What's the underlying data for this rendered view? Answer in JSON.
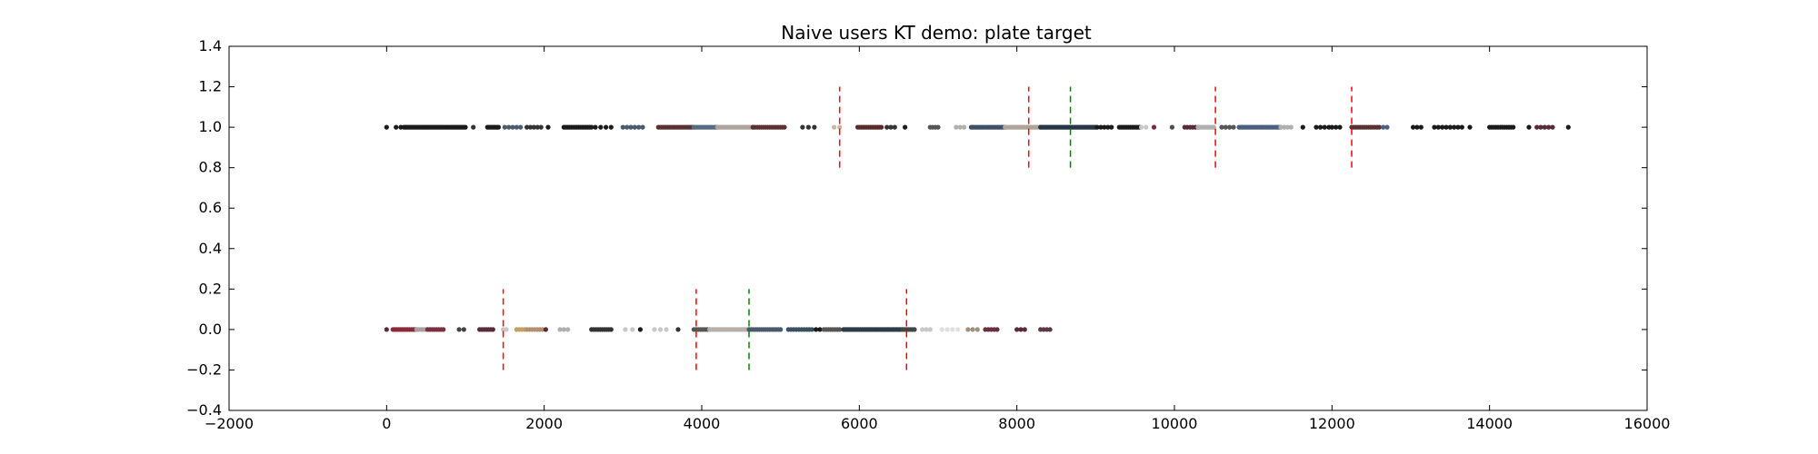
{
  "chart_data": {
    "type": "scatter",
    "title": "Naive users KT demo: plate target",
    "xlabel": "",
    "ylabel": "",
    "xlim": [
      -2000,
      16000
    ],
    "ylim": [
      -0.4,
      1.4
    ],
    "xticks": [
      -2000,
      0,
      2000,
      4000,
      6000,
      8000,
      10000,
      12000,
      14000,
      16000
    ],
    "yticks": [
      -0.4,
      -0.2,
      0.0,
      0.2,
      0.4,
      0.6,
      0.8,
      1.0,
      1.2,
      1.4
    ],
    "xtick_labels": [
      "−2000",
      "0",
      "2000",
      "4000",
      "6000",
      "8000",
      "10000",
      "12000",
      "14000",
      "16000"
    ],
    "ytick_labels": [
      "−0.4",
      "−0.2",
      "0.0",
      "0.2",
      "0.4",
      "0.6",
      "0.8",
      "1.0",
      "1.2",
      "1.4"
    ],
    "grid": false,
    "series": [
      {
        "y": 1.0,
        "clusters": [
          {
            "from": 0,
            "to": 0,
            "n": 1,
            "color": "#1a1a1a"
          },
          {
            "from": 120,
            "to": 180,
            "n": 2,
            "color": "#1a1a1a"
          },
          {
            "from": 220,
            "to": 1000,
            "n": 40,
            "color": "#1a1a1a"
          },
          {
            "from": 1100,
            "to": 1100,
            "n": 1,
            "color": "#333333"
          },
          {
            "from": 1280,
            "to": 1420,
            "n": 8,
            "color": "#1a1a1a"
          },
          {
            "from": 1500,
            "to": 1700,
            "n": 5,
            "color": "#4a5a70"
          },
          {
            "from": 1780,
            "to": 1960,
            "n": 5,
            "color": "#333333"
          },
          {
            "from": 2050,
            "to": 2050,
            "n": 1,
            "color": "#1a1a1a"
          },
          {
            "from": 2250,
            "to": 2600,
            "n": 16,
            "color": "#1a1a1a"
          },
          {
            "from": 2650,
            "to": 2850,
            "n": 4,
            "color": "#1a1a1a"
          },
          {
            "from": 3000,
            "to": 3250,
            "n": 6,
            "color": "#4a5a70"
          },
          {
            "from": 3450,
            "to": 3900,
            "n": 20,
            "color": "#5a3030"
          },
          {
            "from": 3900,
            "to": 4200,
            "n": 14,
            "color": "#556b84"
          },
          {
            "from": 4200,
            "to": 4650,
            "n": 24,
            "color": "#b0a49a"
          },
          {
            "from": 4650,
            "to": 5050,
            "n": 16,
            "color": "#5a3030"
          },
          {
            "from": 5280,
            "to": 5430,
            "n": 3,
            "color": "#333333"
          },
          {
            "from": 5680,
            "to": 5750,
            "n": 2,
            "color": "#c8b8a8"
          },
          {
            "from": 5980,
            "to": 6280,
            "n": 14,
            "color": "#5a2a2a"
          },
          {
            "from": 6350,
            "to": 6450,
            "n": 3,
            "color": "#333333"
          },
          {
            "from": 6580,
            "to": 6580,
            "n": 1,
            "color": "#1a1a1a"
          },
          {
            "from": 6900,
            "to": 7000,
            "n": 4,
            "color": "#555555"
          },
          {
            "from": 7230,
            "to": 7330,
            "n": 3,
            "color": "#b0b0b0"
          },
          {
            "from": 7420,
            "to": 7850,
            "n": 20,
            "color": "#3c5068"
          },
          {
            "from": 7850,
            "to": 8300,
            "n": 24,
            "color": "#b0a49a"
          },
          {
            "from": 8300,
            "to": 9000,
            "n": 40,
            "color": "#253648"
          },
          {
            "from": 9020,
            "to": 9200,
            "n": 5,
            "color": "#1a1a1a"
          },
          {
            "from": 9300,
            "to": 9560,
            "n": 12,
            "color": "#1a1a1a"
          },
          {
            "from": 9580,
            "to": 9640,
            "n": 2,
            "color": "#c8c8c8"
          },
          {
            "from": 9740,
            "to": 9740,
            "n": 1,
            "color": "#7a2a3a"
          },
          {
            "from": 9970,
            "to": 9970,
            "n": 1,
            "color": "#4a4a5a"
          },
          {
            "from": 10130,
            "to": 10300,
            "n": 6,
            "color": "#5a2a3a"
          },
          {
            "from": 10300,
            "to": 10500,
            "n": 10,
            "color": "#b0b0b0"
          },
          {
            "from": 10600,
            "to": 10750,
            "n": 4,
            "color": "#555555"
          },
          {
            "from": 10820,
            "to": 11350,
            "n": 26,
            "color": "#4a6080"
          },
          {
            "from": 11350,
            "to": 11480,
            "n": 4,
            "color": "#b0b0b0"
          },
          {
            "from": 11630,
            "to": 11650,
            "n": 1,
            "color": "#1a1a1a"
          },
          {
            "from": 11800,
            "to": 11960,
            "n": 4,
            "color": "#1a1a1a"
          },
          {
            "from": 12000,
            "to": 12100,
            "n": 3,
            "color": "#1a1a1a"
          },
          {
            "from": 12250,
            "to": 12600,
            "n": 14,
            "color": "#5a3030"
          },
          {
            "from": 12650,
            "to": 12700,
            "n": 2,
            "color": "#4a6080"
          },
          {
            "from": 13030,
            "to": 13130,
            "n": 3,
            "color": "#1a1a1a"
          },
          {
            "from": 13300,
            "to": 13450,
            "n": 4,
            "color": "#1a1a1a"
          },
          {
            "from": 13500,
            "to": 13650,
            "n": 4,
            "color": "#1a1a1a"
          },
          {
            "from": 13750,
            "to": 13750,
            "n": 1,
            "color": "#1a1a1a"
          },
          {
            "from": 14000,
            "to": 14300,
            "n": 12,
            "color": "#1a1a1a"
          },
          {
            "from": 14500,
            "to": 14500,
            "n": 1,
            "color": "#1a1a1a"
          },
          {
            "from": 14600,
            "to": 14800,
            "n": 5,
            "color": "#5a2a3a"
          },
          {
            "from": 15000,
            "to": 15000,
            "n": 1,
            "color": "#1a1a1a"
          }
        ],
        "events": [
          {
            "x": 5750,
            "color": "#ff0000"
          },
          {
            "x": 8150,
            "color": "#ff0000"
          },
          {
            "x": 8680,
            "color": "#008000"
          },
          {
            "x": 10520,
            "color": "#ff0000"
          },
          {
            "x": 12250,
            "color": "#ff0000"
          }
        ]
      },
      {
        "y": 0.0,
        "clusters": [
          {
            "from": 0,
            "to": 0,
            "n": 1,
            "color": "#5a2a3a"
          },
          {
            "from": 80,
            "to": 380,
            "n": 14,
            "color": "#8a2a3a"
          },
          {
            "from": 380,
            "to": 520,
            "n": 6,
            "color": "#a8a0a0"
          },
          {
            "from": 520,
            "to": 720,
            "n": 8,
            "color": "#7a3040"
          },
          {
            "from": 920,
            "to": 980,
            "n": 2,
            "color": "#444444"
          },
          {
            "from": 1180,
            "to": 1350,
            "n": 7,
            "color": "#5a2a3a"
          },
          {
            "from": 1480,
            "to": 1520,
            "n": 2,
            "color": "#c8c8c8"
          },
          {
            "from": 1650,
            "to": 1750,
            "n": 4,
            "color": "#c4a060"
          },
          {
            "from": 1780,
            "to": 1980,
            "n": 7,
            "color": "#b09070"
          },
          {
            "from": 2020,
            "to": 2050,
            "n": 1,
            "color": "#5a2a3a"
          },
          {
            "from": 2200,
            "to": 2300,
            "n": 3,
            "color": "#b0b0b0"
          },
          {
            "from": 2600,
            "to": 2850,
            "n": 10,
            "color": "#333333"
          },
          {
            "from": 3030,
            "to": 3120,
            "n": 2,
            "color": "#c8c8c8"
          },
          {
            "from": 3220,
            "to": 3230,
            "n": 1,
            "color": "#1a1a1a"
          },
          {
            "from": 3400,
            "to": 3550,
            "n": 3,
            "color": "#c8c8c8"
          },
          {
            "from": 3700,
            "to": 3700,
            "n": 1,
            "color": "#333333"
          },
          {
            "from": 3900,
            "to": 4100,
            "n": 8,
            "color": "#555555"
          },
          {
            "from": 4100,
            "to": 4600,
            "n": 24,
            "color": "#b8b0a8"
          },
          {
            "from": 4600,
            "to": 5000,
            "n": 16,
            "color": "#4a5a6a"
          },
          {
            "from": 5100,
            "to": 5400,
            "n": 10,
            "color": "#3a5060"
          },
          {
            "from": 5450,
            "to": 5500,
            "n": 2,
            "color": "#1a1a1a"
          },
          {
            "from": 5550,
            "to": 5750,
            "n": 8,
            "color": "#555555"
          },
          {
            "from": 5800,
            "to": 6550,
            "n": 36,
            "color": "#2a3a48"
          },
          {
            "from": 6550,
            "to": 6700,
            "n": 7,
            "color": "#444444"
          },
          {
            "from": 6800,
            "to": 6900,
            "n": 3,
            "color": "#c8c8c8"
          },
          {
            "from": 7050,
            "to": 7250,
            "n": 4,
            "color": "#e0e0e0"
          },
          {
            "from": 7380,
            "to": 7500,
            "n": 3,
            "color": "#a09080"
          },
          {
            "from": 7600,
            "to": 7750,
            "n": 5,
            "color": "#6a3040"
          },
          {
            "from": 8000,
            "to": 8100,
            "n": 3,
            "color": "#5a2a3a"
          },
          {
            "from": 8300,
            "to": 8420,
            "n": 4,
            "color": "#5a3a48"
          }
        ],
        "events": [
          {
            "x": 1480,
            "color": "#ff0000"
          },
          {
            "x": 3930,
            "color": "#ff0000"
          },
          {
            "x": 4600,
            "color": "#008000"
          },
          {
            "x": 6600,
            "color": "#ff0000"
          }
        ]
      }
    ]
  }
}
